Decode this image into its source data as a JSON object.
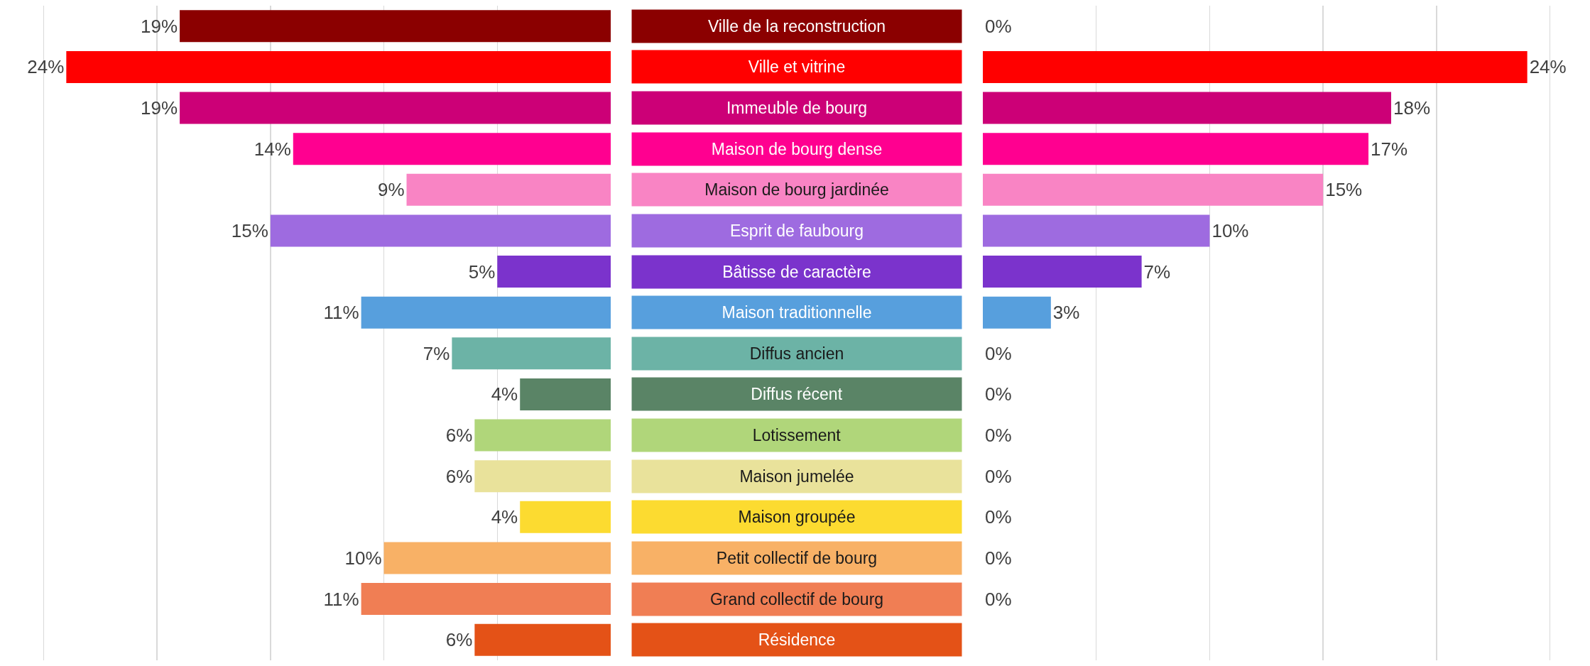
{
  "chart_data": [
    {
      "type": "bar",
      "orientation": "horizontal",
      "tick_labels": "y",
      "grid": "x",
      "categories": [
        "Ville de la reconstruction",
        "Ville et vitrine",
        "Immeuble de bourg",
        "Maison de bourg dense",
        "Maison de bourg jardinée",
        "Esprit de faubourg",
        "Bâtisse de caractère",
        "Maison traditionnelle",
        "Diffus ancien",
        "Diffus récent",
        "Lotissement",
        "Maison jumelée",
        "Maison groupée",
        "Petit collectif de bourg",
        "Grand collectif de bourg",
        "Résidence"
      ],
      "colors": [
        "#8b0000",
        "#ff0000",
        "#cc0077",
        "#ff0090",
        "#f984c4",
        "#9e6be0",
        "#7b33cc",
        "#579fdd",
        "#6cb3a6",
        "#5a8466",
        "#b0d67a",
        "#e9e29b",
        "#fcdb30",
        "#f8b166",
        "#f07e54",
        "#e45217"
      ],
      "values": [
        19,
        24,
        19,
        14,
        9,
        15,
        5,
        11,
        7,
        4,
        6,
        6,
        4,
        10,
        11,
        6
      ],
      "value_labels": [
        "19%",
        "24%",
        "19%",
        "14%",
        "9%",
        "15%",
        "5%",
        "11%",
        "7%",
        "4%",
        "6%",
        "6%",
        "4%",
        "10%",
        "11%",
        "6%"
      ]
    },
    {
      "type": "bar",
      "orientation": "horizontal",
      "tick_labels": false,
      "grid": "x",
      "categories": [
        null,
        null,
        null,
        null,
        null,
        null,
        null,
        null,
        null,
        null,
        null,
        null,
        null,
        null,
        null,
        null
      ],
      "colors": [
        "#8b0000",
        "#ff0000",
        "#cc0077",
        "#ff0090",
        "#f984c4",
        "#9e6be0",
        "#7b33cc",
        "#579fdd",
        "#6cb3a6",
        "#5a8466",
        "#b0d67a",
        "#e9e29b",
        "#fcdb30",
        "#f8b166",
        "#f07e54",
        "#e45217"
      ],
      "values": [
        0,
        24,
        18,
        17,
        15,
        10,
        7,
        3,
        0,
        0,
        0,
        0,
        0,
        0,
        0,
        null
      ],
      "value_labels": [
        "0%",
        "24%",
        "18%",
        "17%",
        "15%",
        "10%",
        "7%",
        "3%",
        "0%",
        "0%",
        "0%",
        "0%",
        "0%",
        "0%",
        "0%",
        null
      ]
    }
  ]
}
